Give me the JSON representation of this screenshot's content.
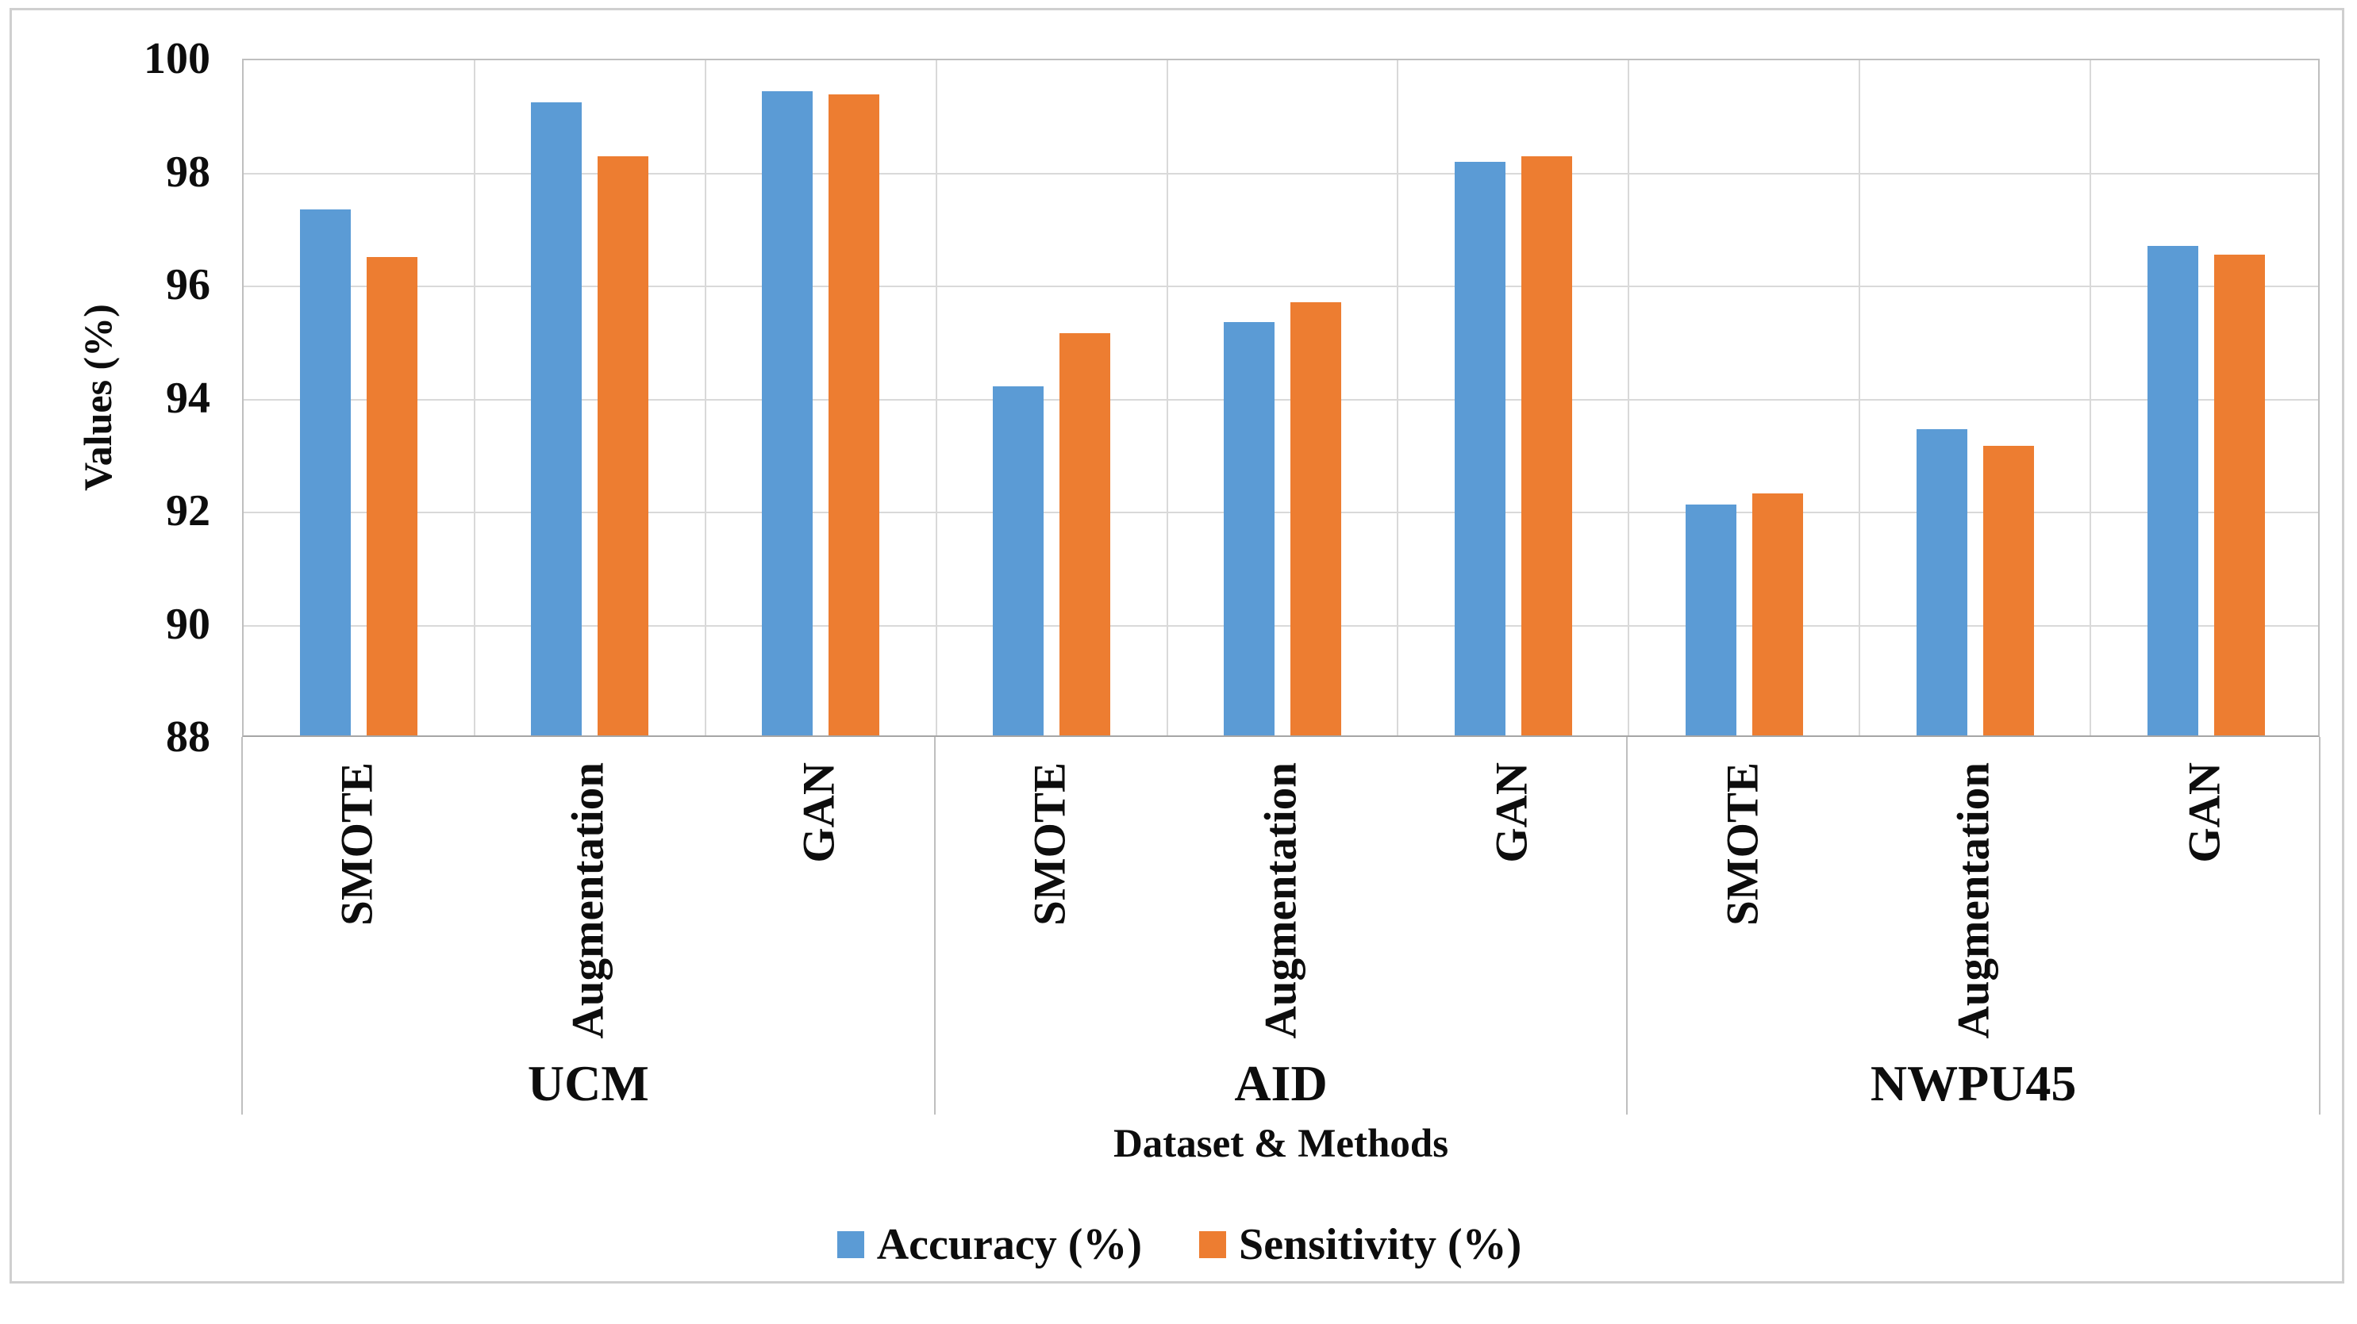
{
  "chart_data": {
    "type": "bar",
    "title": "",
    "xlabel": "Dataset & Methods",
    "ylabel": "Values (%)",
    "ylim": [
      88,
      100
    ],
    "yticks": [
      88,
      90,
      92,
      94,
      96,
      98,
      100
    ],
    "grid": true,
    "legend_position": "bottom-center",
    "groups": [
      {
        "label": "UCM",
        "categories": [
          "SMOTE",
          "Augmentation",
          "GAN"
        ]
      },
      {
        "label": "AID",
        "categories": [
          "SMOTE",
          "Augmentation",
          "GAN"
        ]
      },
      {
        "label": "NWPU45",
        "categories": [
          "SMOTE",
          "Augmentation",
          "GAN"
        ]
      }
    ],
    "series": [
      {
        "name": "Accuracy (%)",
        "color": "#5B9BD5",
        "values": [
          97.35,
          99.25,
          99.45,
          94.2,
          95.35,
          98.2,
          92.1,
          93.45,
          96.7
        ]
      },
      {
        "name": "Sensitivity (%)",
        "color": "#ED7D31",
        "values": [
          96.5,
          98.3,
          99.4,
          95.15,
          95.7,
          98.3,
          92.3,
          93.15,
          96.55
        ]
      }
    ]
  },
  "colors": {
    "gridline": "#d9d9d9",
    "axis_line": "#bfbfbf",
    "bottom_axis_line": "#a6a6a6",
    "figure_border": "#cfcfcf",
    "text": "#0d0d0d"
  }
}
